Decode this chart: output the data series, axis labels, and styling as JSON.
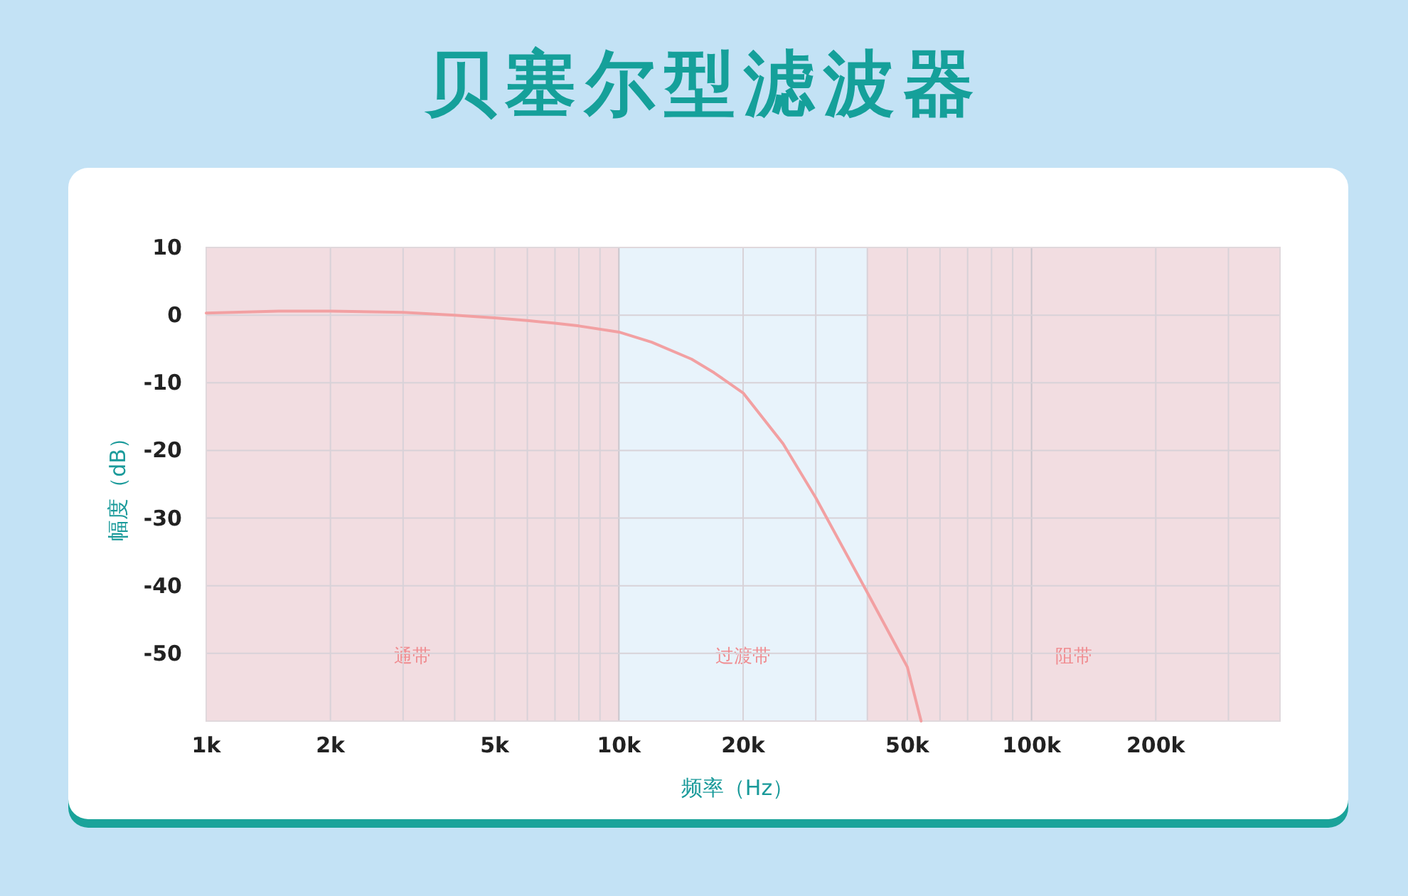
{
  "chart_data": {
    "type": "line",
    "title": "贝塞尔型滤波器",
    "xlabel": "频率（Hz）",
    "ylabel": "幅度（dB）",
    "x": [
      1000,
      1500,
      2000,
      3000,
      4000,
      5000,
      6000,
      7000,
      8000,
      10000,
      12000,
      15000,
      17000,
      20000,
      25000,
      30000,
      40000,
      50000,
      54000
    ],
    "series": [
      {
        "color": "#f2a0a2",
        "values": [
          0.3,
          0.6,
          0.6,
          0.4,
          0,
          -0.4,
          -0.8,
          -1.2,
          -1.6,
          -2.5,
          -4,
          -6.5,
          -8.5,
          -11.5,
          -19,
          -27,
          -41,
          -52,
          -60
        ]
      }
    ],
    "log": "x",
    "xlim": [
      1000,
      400000
    ],
    "ylim": [
      -60,
      10
    ],
    "xticks": [
      {
        "value": 1000,
        "label": "1k"
      },
      {
        "value": 2000,
        "label": "2k"
      },
      {
        "value": 5000,
        "label": "5k"
      },
      {
        "value": 10000,
        "label": "10k"
      },
      {
        "value": 20000,
        "label": "20k"
      },
      {
        "value": 50000,
        "label": "50k"
      },
      {
        "value": 100000,
        "label": "100k"
      },
      {
        "value": 200000,
        "label": "200k"
      }
    ],
    "yticks": [
      10,
      0,
      -10,
      -20,
      -30,
      -40,
      -50,
      {
        "value": -60,
        "label": null
      }
    ],
    "grid": true,
    "marker": "none",
    "line_style": "solid",
    "bands": [
      {
        "axis": "x",
        "from": 1000,
        "to": 10000,
        "label": "通带",
        "color": "#f2dde1"
      },
      {
        "axis": "x",
        "from": 10000,
        "to": 40000,
        "label": "过渡带",
        "color": "#e8f3fb"
      },
      {
        "axis": "x",
        "from": 40000,
        "to": 400000,
        "label": "阻带",
        "color": "#f2dde1"
      }
    ]
  }
}
